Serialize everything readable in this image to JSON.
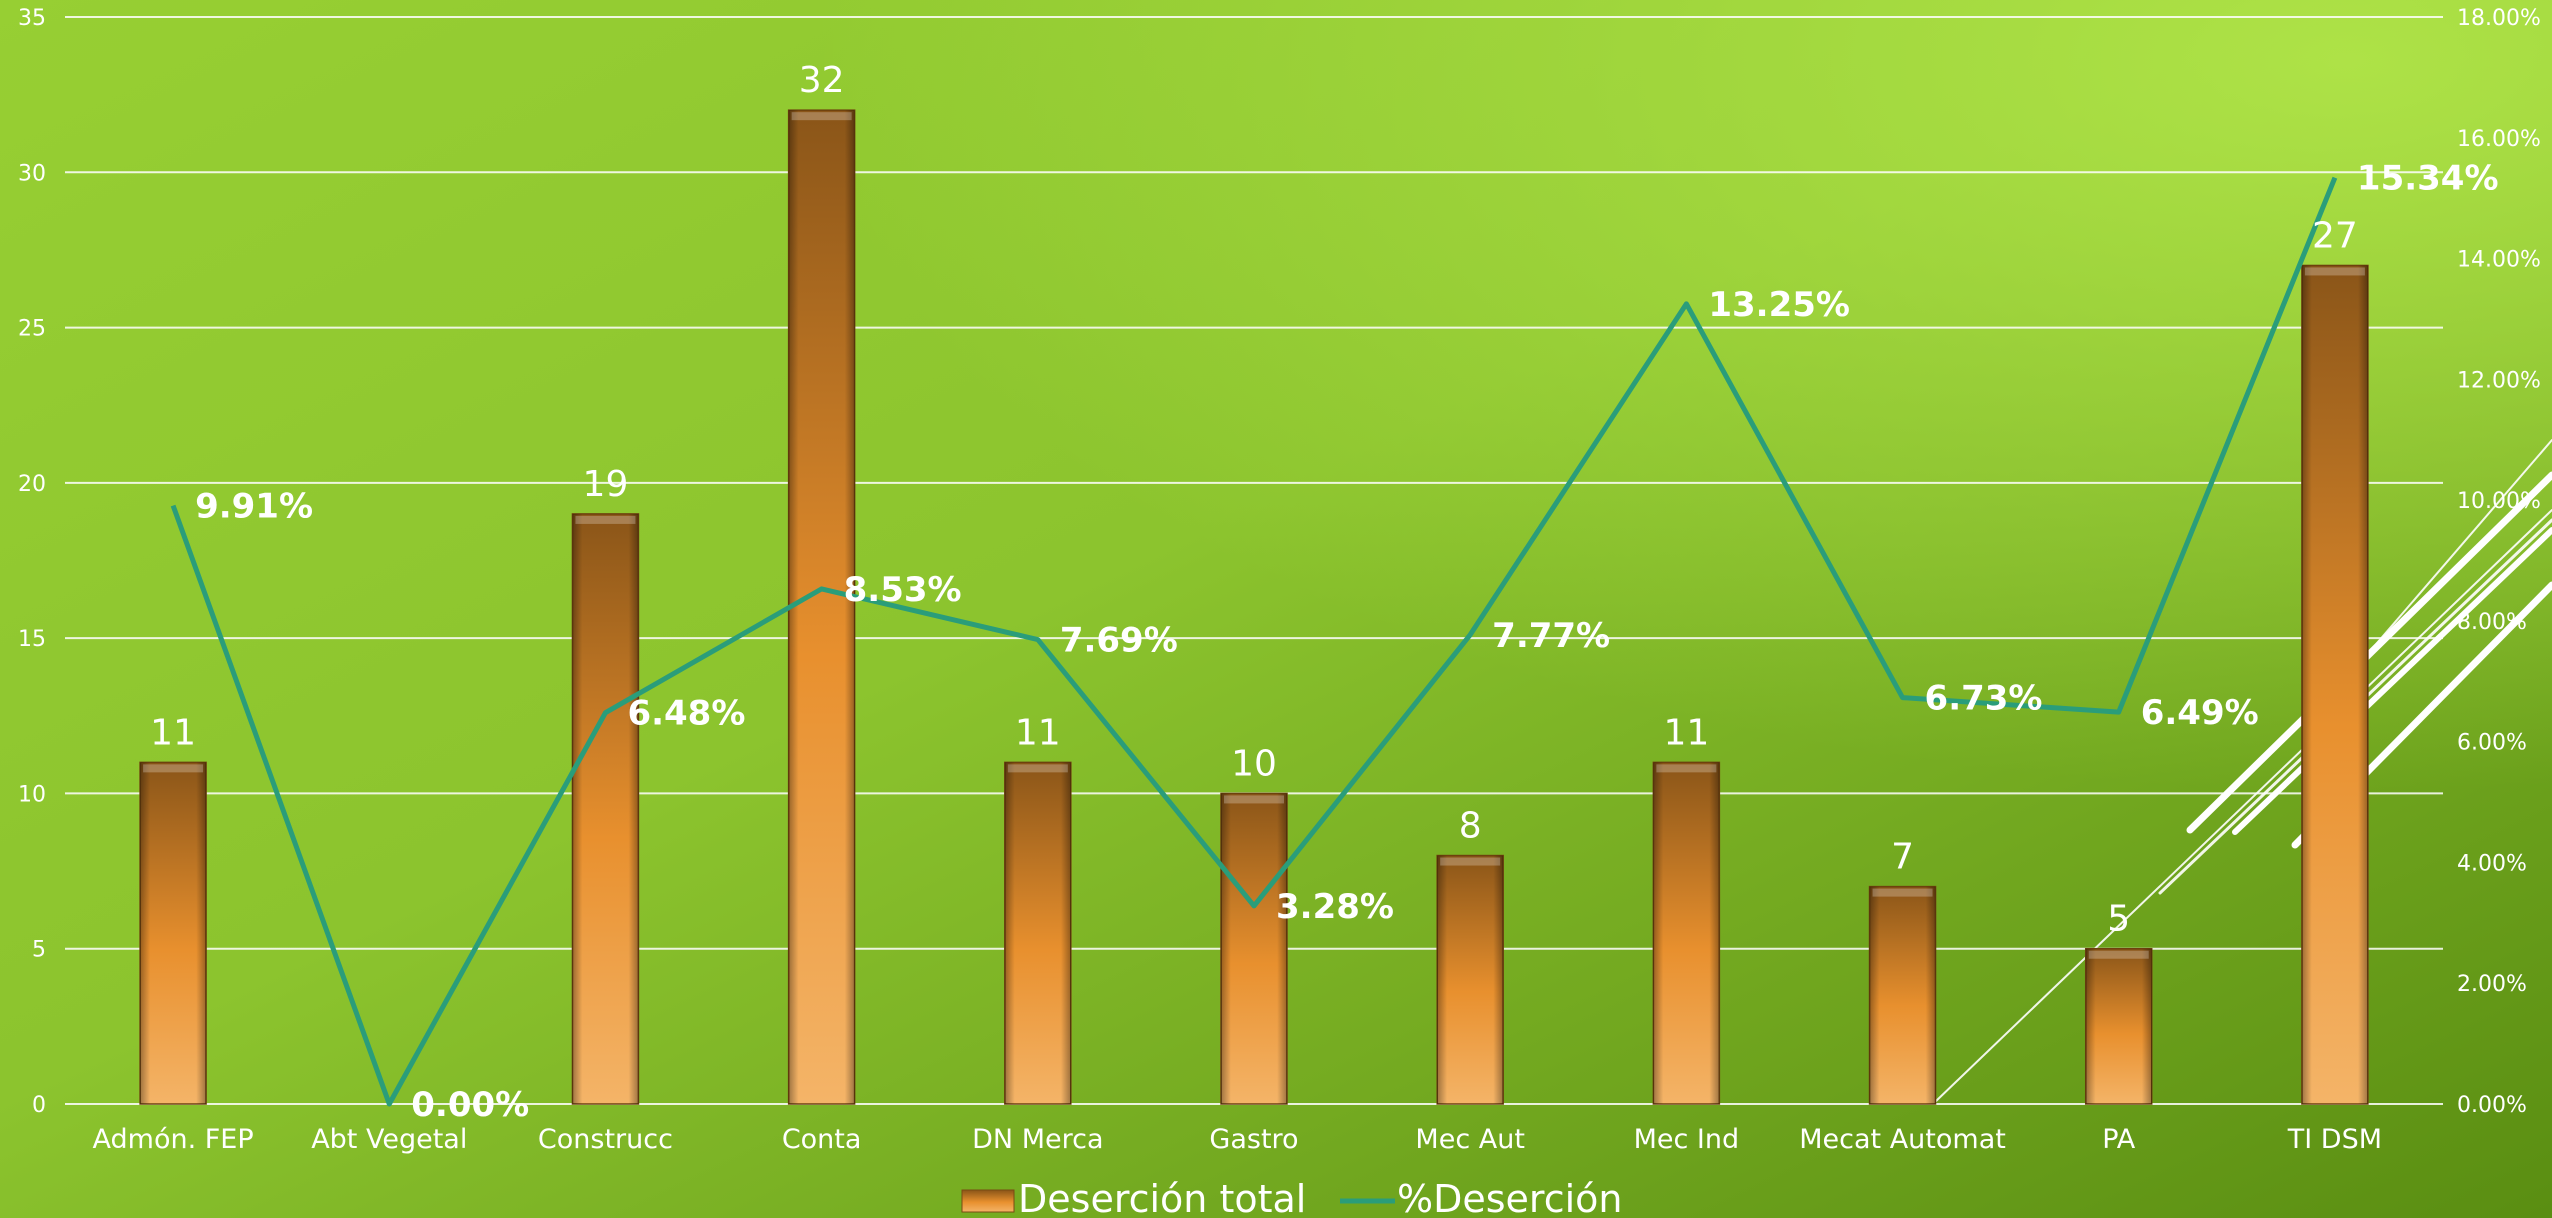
{
  "chart_data": {
    "type": "bar",
    "categories": [
      "Admón. FEP",
      "Abt Vegetal",
      "Construcc",
      "Conta",
      "DN Merca",
      "Gastro",
      "Mec Aut",
      "Mec Ind",
      "Mecat Automat",
      "PA",
      "TI DSM"
    ],
    "series": [
      {
        "name": "Deserción total",
        "type": "bar",
        "axis": "left",
        "values": [
          11,
          0,
          19,
          32,
          11,
          10,
          8,
          11,
          7,
          5,
          27
        ],
        "labels": [
          "11",
          "",
          "19",
          "32",
          "11",
          "10",
          "8",
          "11",
          "7",
          "5",
          "27"
        ],
        "color": "#e8922e"
      },
      {
        "name": "%Deserción",
        "type": "line",
        "axis": "right",
        "values": [
          9.91,
          0.0,
          6.48,
          8.53,
          7.69,
          3.28,
          7.77,
          13.25,
          6.73,
          6.49,
          15.34
        ],
        "labels": [
          "9.91%",
          "0.00%",
          "6.48%",
          "8.53%",
          "7.69%",
          "3.28%",
          "7.77%",
          "13.25%",
          "6.73%",
          "6.49%",
          "15.34%"
        ],
        "color": "#2a9d7a"
      }
    ],
    "y_left": {
      "min": 0,
      "max": 35,
      "ticks": [
        "0",
        "5",
        "10",
        "15",
        "20",
        "25",
        "30",
        "35"
      ]
    },
    "y_right": {
      "min": 0,
      "max": 18,
      "ticks": [
        "0.00%",
        "2.00%",
        "4.00%",
        "6.00%",
        "8.00%",
        "10.00%",
        "12.00%",
        "14.00%",
        "16.00%",
        "18.00%"
      ]
    },
    "grid": true,
    "legend_position": "bottom",
    "title": "",
    "xlabel": "",
    "ylabel": ""
  }
}
